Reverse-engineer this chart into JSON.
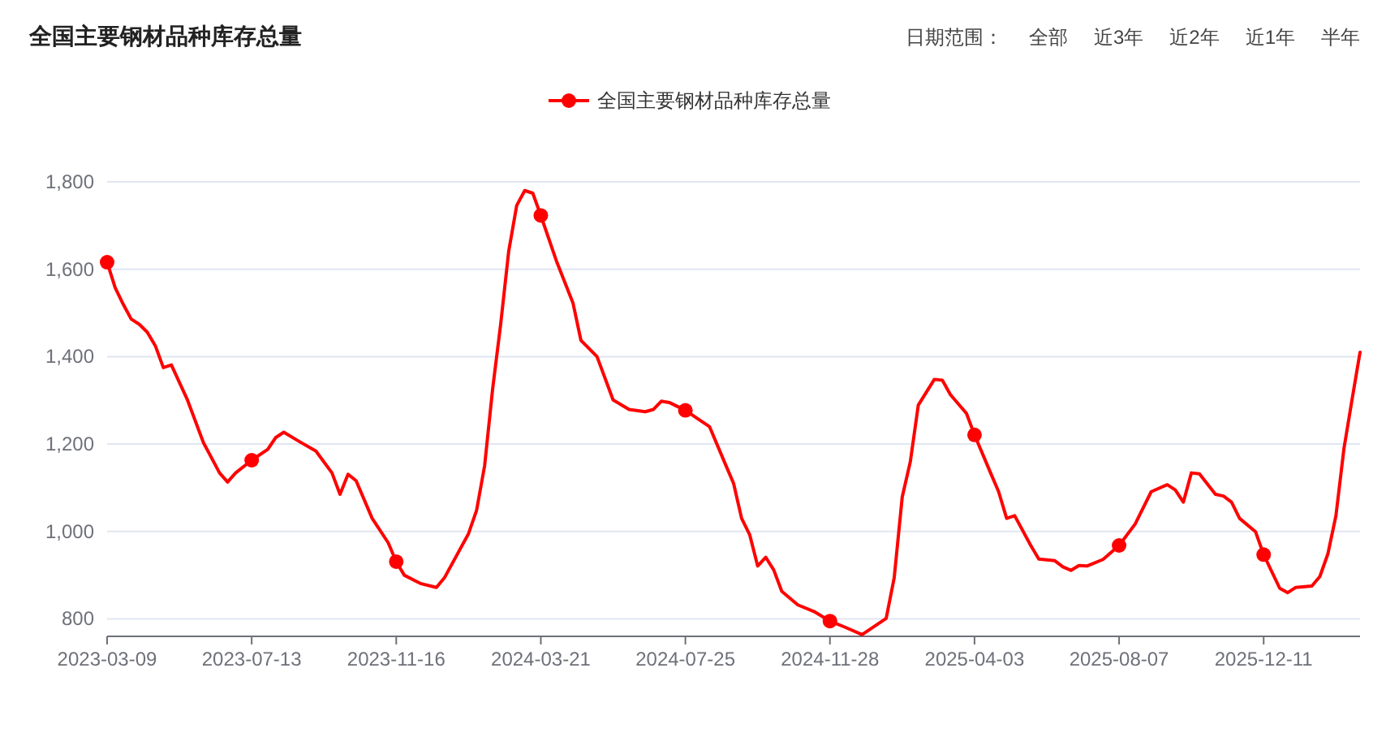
{
  "chart_data": {
    "type": "line",
    "title": "全国主要钢材品种库存总量",
    "annotations": [
      "日期范围：",
      "全部",
      "近3年",
      "近2年",
      "近1年",
      "半年"
    ],
    "x": [
      "2023-03-09",
      "2023-03-16",
      "2023-03-23",
      "2023-03-30",
      "2023-04-06",
      "2023-04-13",
      "2023-04-20",
      "2023-04-27",
      "2023-05-04",
      "2023-05-18",
      "2023-06-01",
      "2023-06-15",
      "2023-06-22",
      "2023-06-29",
      "2023-07-13",
      "2023-07-27",
      "2023-08-03",
      "2023-08-10",
      "2023-08-24",
      "2023-09-07",
      "2023-09-21",
      "2023-09-28",
      "2023-10-05",
      "2023-10-12",
      "2023-10-26",
      "2023-11-09",
      "2023-11-16",
      "2023-11-23",
      "2023-12-07",
      "2023-12-21",
      "2023-12-28",
      "2024-01-18",
      "2024-01-25",
      "2024-02-01",
      "2024-02-08",
      "2024-02-15",
      "2024-02-22",
      "2024-02-29",
      "2024-03-07",
      "2024-03-14",
      "2024-03-21",
      "2024-04-04",
      "2024-04-18",
      "2024-04-25",
      "2024-05-09",
      "2024-05-23",
      "2024-06-06",
      "2024-06-20",
      "2024-06-27",
      "2024-07-04",
      "2024-07-11",
      "2024-07-25",
      "2024-08-15",
      "2024-08-29",
      "2024-09-05",
      "2024-09-12",
      "2024-09-19",
      "2024-09-26",
      "2024-10-03",
      "2024-10-10",
      "2024-10-17",
      "2024-10-31",
      "2024-11-14",
      "2024-11-28",
      "2024-12-12",
      "2024-12-26",
      "2025-01-16",
      "2025-01-23",
      "2025-01-30",
      "2025-02-06",
      "2025-02-13",
      "2025-02-27",
      "2025-03-06",
      "2025-03-13",
      "2025-03-27",
      "2025-04-03",
      "2025-04-17",
      "2025-04-24",
      "2025-05-01",
      "2025-05-08",
      "2025-05-22",
      "2025-05-29",
      "2025-06-12",
      "2025-06-19",
      "2025-06-26",
      "2025-07-03",
      "2025-07-10",
      "2025-07-24",
      "2025-08-07",
      "2025-08-21",
      "2025-09-04",
      "2025-09-18",
      "2025-09-25",
      "2025-10-02",
      "2025-10-09",
      "2025-10-16",
      "2025-10-30",
      "2025-11-06",
      "2025-11-13",
      "2025-11-20",
      "2025-12-04",
      "2025-12-11",
      "2025-12-25",
      "2026-01-01",
      "2026-01-08",
      "2026-01-22",
      "2026-01-29",
      "2026-02-05",
      "2026-02-12",
      "2026-02-19",
      "2026-02-26",
      "2026-03-05"
    ],
    "series": [
      {
        "name": "全国主要钢材品种库存总量",
        "color": "#ff0000",
        "values": [
          1616,
          1558,
          1520,
          1486,
          1474,
          1456,
          1425,
          1375,
          1381,
          1301,
          1203,
          1134,
          1113,
          1134,
          1163,
          1188,
          1215,
          1227,
          1205,
          1184,
          1134,
          1085,
          1131,
          1116,
          1030,
          974,
          931,
          900,
          881,
          872,
          894,
          995,
          1048,
          1150,
          1326,
          1474,
          1641,
          1746,
          1780,
          1774,
          1723,
          1616,
          1523,
          1437,
          1400,
          1301,
          1279,
          1274,
          1279,
          1298,
          1295,
          1277,
          1240,
          1153,
          1110,
          1030,
          993,
          921,
          941,
          912,
          863,
          832,
          817,
          795,
          780,
          764,
          801,
          894,
          1079,
          1159,
          1289,
          1348,
          1346,
          1313,
          1270,
          1221,
          1134,
          1091,
          1030,
          1036,
          968,
          937,
          933,
          919,
          911,
          922,
          921,
          936,
          968,
          1017,
          1091,
          1107,
          1095,
          1067,
          1134,
          1132,
          1085,
          1081,
          1067,
          1030,
          999,
          947,
          870,
          860,
          872,
          875,
          897,
          949,
          1036,
          1190,
          1301,
          1410
        ]
      },
      {
        "type": "scatter",
        "color": "#ff0000",
        "x": [
          "2023-03-09",
          "2023-07-13",
          "2023-11-16",
          "2024-03-21",
          "2024-07-25",
          "2024-11-28",
          "2025-04-03",
          "2025-08-07",
          "2025-12-11"
        ],
        "values": [
          1616,
          1163,
          931,
          1723,
          1277,
          795,
          1221,
          968,
          947
        ]
      }
    ],
    "xlim": [
      "2023-03-09",
      "2026-03-05"
    ],
    "xticks": [
      "2023-03-09",
      "2023-07-13",
      "2023-11-16",
      "2024-03-21",
      "2024-07-25",
      "2024-11-28",
      "2025-04-03",
      "2025-08-07",
      "2025-12-11"
    ],
    "ylim": [
      760,
      1800
    ],
    "yticks": [
      800,
      {
        "value": 1000,
        "label": "1,000"
      },
      {
        "value": 1200,
        "label": "1,200"
      },
      {
        "value": 1400,
        "label": "1,400"
      },
      {
        "value": 1600,
        "label": "1,600"
      },
      {
        "value": 1800,
        "label": "1,800"
      }
    ],
    "grid": "y",
    "legend": "top",
    "line_style": "solid"
  }
}
